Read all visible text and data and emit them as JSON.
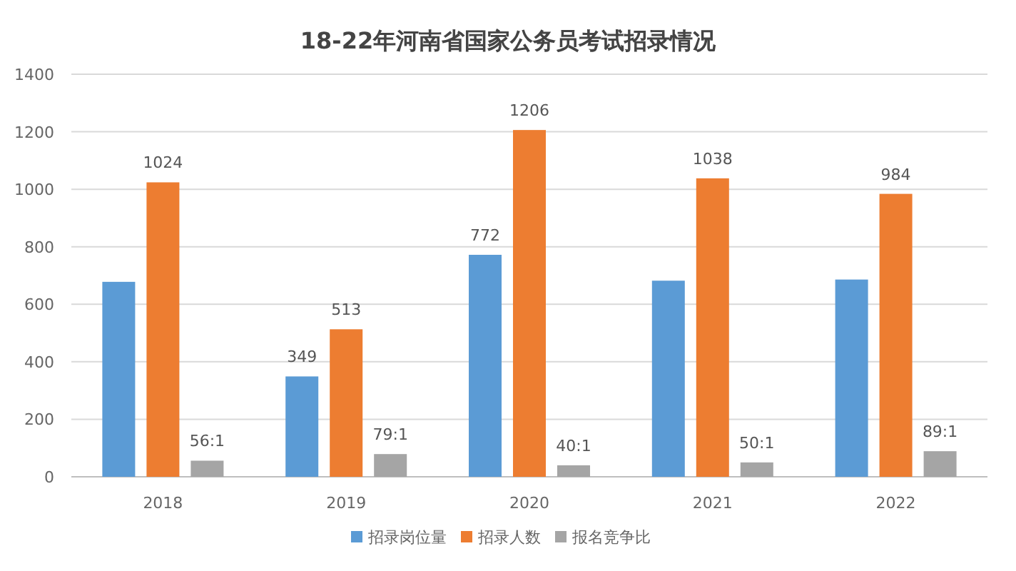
{
  "chart_data": {
    "type": "bar",
    "title": "18-22年河南省国家公务员考试招录情况",
    "categories": [
      "2018",
      "2019",
      "2020",
      "2021",
      "2022"
    ],
    "series": [
      {
        "name": "招录岗位量",
        "color": "#5b9bd5",
        "values": [
          678,
          349,
          772,
          682,
          686
        ],
        "value_labels": [
          null,
          "349",
          "772",
          null,
          null
        ]
      },
      {
        "name": "招录人数",
        "color": "#ed7d31",
        "values": [
          1024,
          513,
          1206,
          1038,
          984
        ],
        "value_labels": [
          "1024",
          "513",
          "1206",
          "1038",
          "984"
        ]
      },
      {
        "name": "报名竞争比",
        "color": "#a5a5a5",
        "values": [
          56,
          79,
          40,
          50,
          89
        ],
        "value_labels": [
          "56:1",
          "79:1",
          "40:1",
          "50:1",
          "89:1"
        ]
      }
    ],
    "ylim": [
      0,
      1400
    ],
    "yticks": [
      0,
      200,
      400,
      600,
      800,
      1000,
      1200,
      1400
    ],
    "grid": "y",
    "legend": "bottom"
  }
}
